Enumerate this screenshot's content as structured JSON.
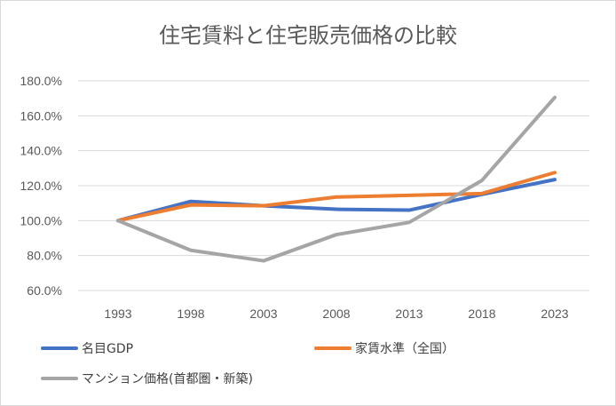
{
  "chart_data": {
    "type": "line",
    "title": "住宅賃料と住宅販売価格の比較",
    "xlabel": "",
    "ylabel": "",
    "categories": [
      "1993",
      "1998",
      "2003",
      "2008",
      "2013",
      "2018",
      "2023"
    ],
    "y_ticks": [
      "60.0%",
      "80.0%",
      "100.0%",
      "120.0%",
      "140.0%",
      "160.0%",
      "180.0%"
    ],
    "ylim": [
      60,
      180
    ],
    "grid": true,
    "legend_position": "bottom",
    "series": [
      {
        "name": "名目GDP",
        "color": "#4472c4",
        "values": [
          100,
          111,
          108.5,
          106.5,
          106,
          115,
          123.5
        ]
      },
      {
        "name": "家賃水準（全国）",
        "color": "#ed7d31",
        "values": [
          100,
          109,
          108.5,
          113.5,
          114.5,
          115.5,
          127.5
        ]
      },
      {
        "name": "マンション価格(首都圏・新築)",
        "color": "#a5a5a5",
        "values": [
          100,
          83,
          77,
          92,
          99,
          123,
          170.5
        ]
      }
    ]
  }
}
